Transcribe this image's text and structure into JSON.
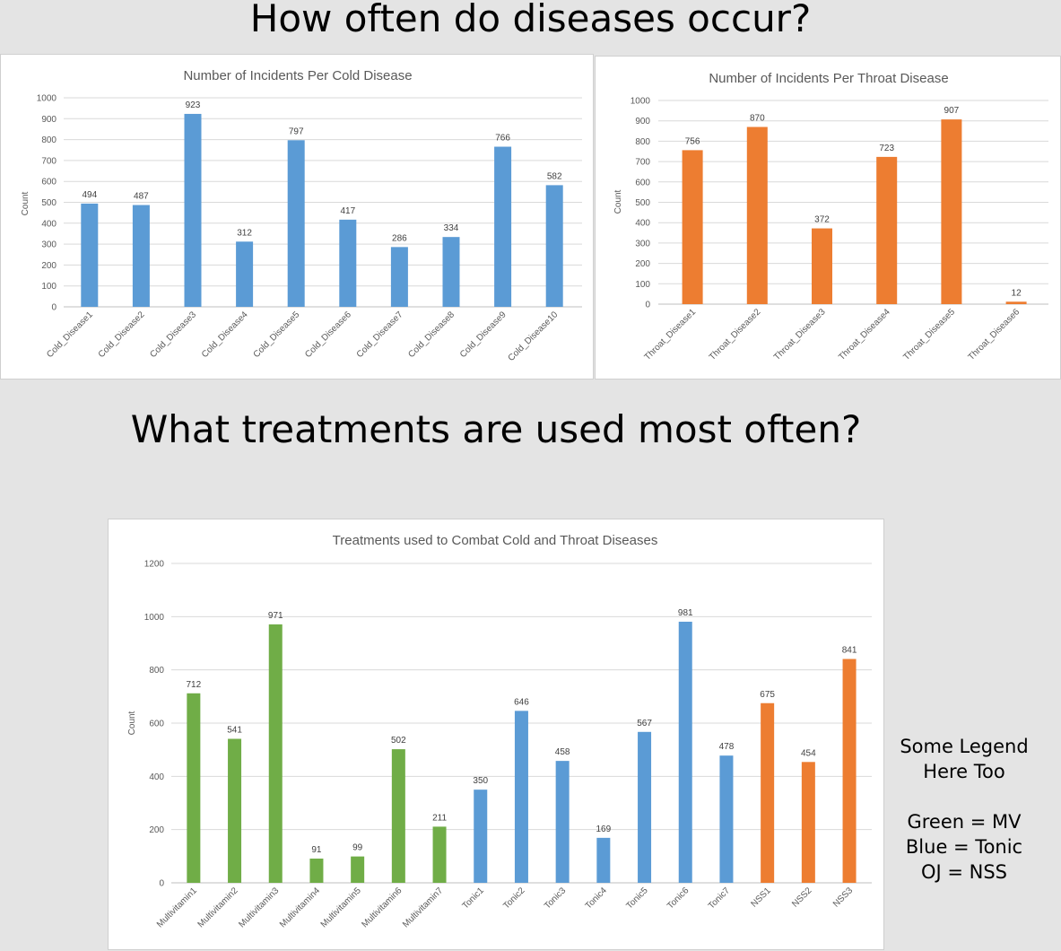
{
  "headings": {
    "top": "How often do diseases occur?",
    "middle": "What treatments are used most often?"
  },
  "legend_note": {
    "line1": "Some Legend",
    "line2": "Here Too",
    "line3": "Green = MV",
    "line4": "Blue = Tonic",
    "line5": "OJ = NSS"
  },
  "colors": {
    "blue": "#5b9bd5",
    "orange": "#ed7d31",
    "green": "#70ad47"
  },
  "chart_data": [
    {
      "id": "cold",
      "type": "bar",
      "title": "Number of Incidents Per Cold Disease",
      "xlabel": "",
      "ylabel": "Count",
      "ylim": [
        0,
        1000
      ],
      "yticks": [
        0,
        100,
        200,
        300,
        400,
        500,
        600,
        700,
        800,
        900,
        1000
      ],
      "grid": true,
      "legend": "none",
      "categories": [
        "Cold_Disease1",
        "Cold_Disease2",
        "Cold_Disease3",
        "Cold_Disease4",
        "Cold_Disease5",
        "Cold_Disease6",
        "Cold_Disease7",
        "Cold_Disease8",
        "Cold_Disease9",
        "Cold_Disease10"
      ],
      "values": [
        494,
        487,
        923,
        312,
        797,
        417,
        286,
        334,
        766,
        582
      ],
      "colors": [
        "blue",
        "blue",
        "blue",
        "blue",
        "blue",
        "blue",
        "blue",
        "blue",
        "blue",
        "blue"
      ]
    },
    {
      "id": "throat",
      "type": "bar",
      "title": "Number of Incidents Per Throat Disease",
      "xlabel": "",
      "ylabel": "Count",
      "ylim": [
        0,
        1000
      ],
      "yticks": [
        0,
        100,
        200,
        300,
        400,
        500,
        600,
        700,
        800,
        900,
        1000
      ],
      "grid": true,
      "legend": "none",
      "categories": [
        "Throat_Disease1",
        "Throat_Disease2",
        "Throat_Disease3",
        "Throat_Disease4",
        "Throat_Disease5",
        "Throat_Disease6"
      ],
      "values": [
        756,
        870,
        372,
        723,
        907,
        12
      ],
      "colors": [
        "orange",
        "orange",
        "orange",
        "orange",
        "orange",
        "orange"
      ]
    },
    {
      "id": "treat",
      "type": "bar",
      "title": "Treatments used to Combat Cold and Throat Diseases",
      "xlabel": "",
      "ylabel": "Count",
      "ylim": [
        0,
        1200
      ],
      "yticks": [
        0,
        200,
        400,
        600,
        800,
        1000,
        1200
      ],
      "grid": true,
      "legend": "none",
      "categories": [
        "Multivitamin1",
        "Multivitamin2",
        "Multivitamin3",
        "Multivitamin4",
        "Multivitamin5",
        "Multivitamin6",
        "Multivitamin7",
        "Tonic1",
        "Tonic2",
        "Tonic3",
        "Tonic4",
        "Tonic5",
        "Tonic6",
        "Tonic7",
        "NSS1",
        "NSS2",
        "NSS3"
      ],
      "values": [
        712,
        541,
        971,
        91,
        99,
        502,
        211,
        350,
        646,
        458,
        169,
        567,
        981,
        478,
        675,
        454,
        841
      ],
      "colors": [
        "green",
        "green",
        "green",
        "green",
        "green",
        "green",
        "green",
        "blue",
        "blue",
        "blue",
        "blue",
        "blue",
        "blue",
        "blue",
        "orange",
        "orange",
        "orange"
      ]
    }
  ]
}
